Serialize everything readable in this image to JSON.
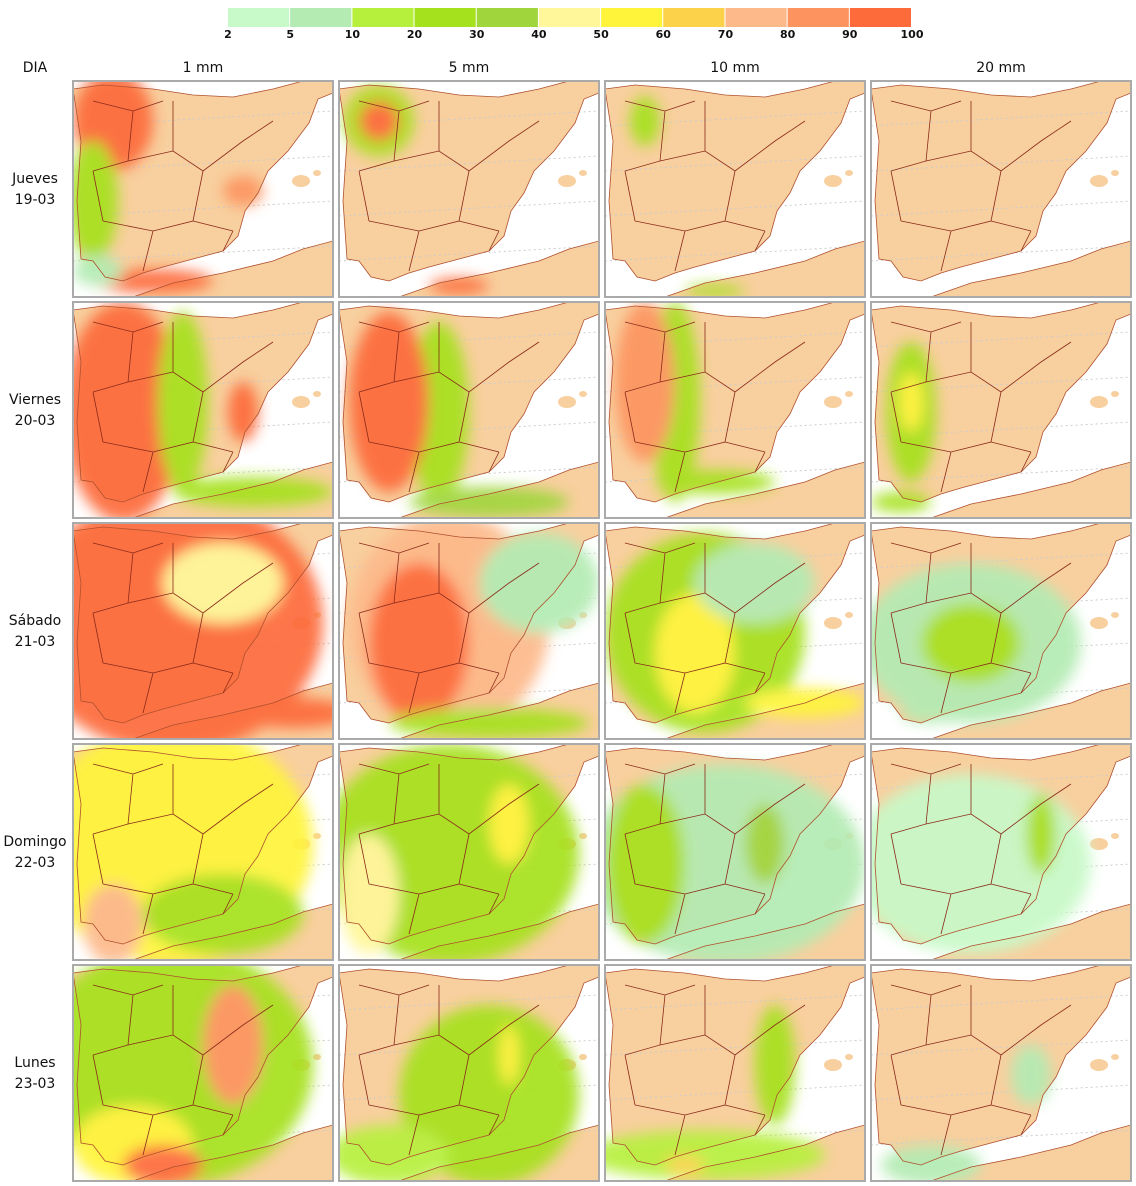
{
  "legend": {
    "labels": [
      "2",
      "5",
      "10",
      "20",
      "30",
      "40",
      "50",
      "60",
      "70",
      "80",
      "90",
      "100"
    ],
    "colors": [
      "#c8f9c8",
      "#b3ebb3",
      "#b7f03c",
      "#a6e11e",
      "#a0d63c",
      "#fff799",
      "#fff43a",
      "#fcd24a",
      "#fdb98a",
      "#fd9460",
      "#fd6b3a"
    ]
  },
  "corner": "DIA",
  "columns": [
    "1 mm",
    "5 mm",
    "10 mm",
    "20 mm"
  ],
  "rows": [
    {
      "day": "Jueves",
      "date": "19-03"
    },
    {
      "day": "Viernes",
      "date": "20-03"
    },
    {
      "day": "Sábado",
      "date": "21-03"
    },
    {
      "day": "Domingo",
      "date": "22-03"
    },
    {
      "day": "Lunes",
      "date": "23-03"
    }
  ]
}
